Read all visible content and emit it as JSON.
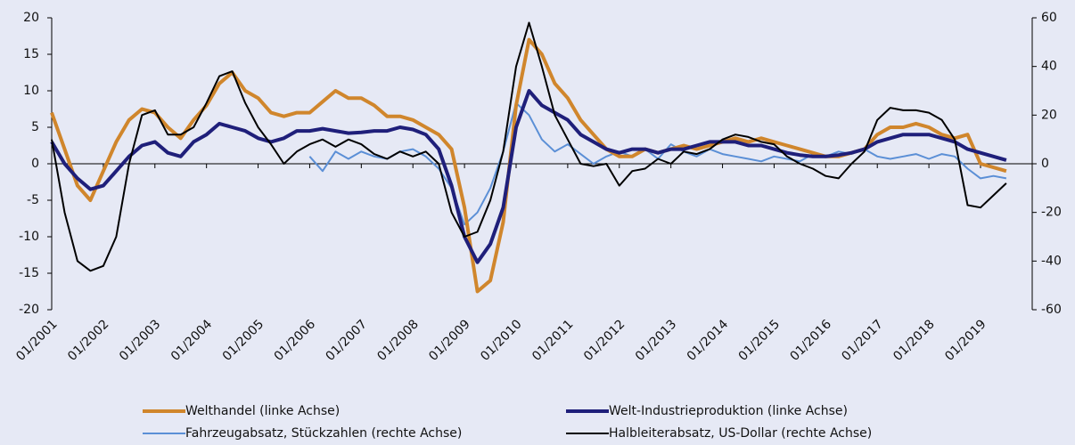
{
  "chart_data": {
    "type": "line",
    "categories": [
      "01/2001",
      null,
      null,
      null,
      "01/2002",
      null,
      null,
      null,
      "01/2003",
      null,
      null,
      null,
      "01/2004",
      null,
      null,
      null,
      "01/2005",
      null,
      null,
      null,
      "01/2006",
      null,
      null,
      null,
      "01/2007",
      null,
      null,
      null,
      "01/2008",
      null,
      null,
      null,
      "01/2009",
      null,
      null,
      null,
      "01/2010",
      null,
      null,
      null,
      "01/2011",
      null,
      null,
      null,
      "01/2012",
      null,
      null,
      null,
      "01/2013",
      null,
      null,
      null,
      "01/2014",
      null,
      null,
      null,
      "01/2015",
      null,
      null,
      null,
      "01/2016",
      null,
      null,
      null,
      "01/2017",
      null,
      null,
      null,
      "01/2018",
      null,
      null,
      null,
      "01/2019",
      null,
      null
    ],
    "series": [
      {
        "name": "Welthandel (linke Achse)",
        "color": "#d0862c",
        "axis": "y",
        "values": [
          7,
          2,
          -3,
          -5,
          -1,
          3,
          6,
          7.5,
          7,
          5,
          3.5,
          6,
          8,
          11,
          12.5,
          10,
          9,
          7,
          6.5,
          7,
          7,
          8.5,
          10,
          9,
          9,
          8,
          6.5,
          6.5,
          6,
          5,
          4,
          2,
          -6,
          -17.5,
          -16,
          -8,
          8,
          17,
          15,
          11,
          9,
          6,
          4,
          2,
          1,
          1,
          2,
          1.5,
          2,
          2.5,
          2,
          2.5,
          3,
          3.5,
          3,
          3.5,
          3,
          2.5,
          2,
          1.5,
          1,
          1,
          1.5,
          2,
          4,
          5,
          5,
          5.5,
          5,
          4,
          3.5,
          4,
          0,
          -0.5,
          -1
        ]
      },
      {
        "name": "Welt-Industrieproduktion (linke Achse)",
        "color": "#1f1f7a",
        "axis": "y",
        "values": [
          3,
          0,
          -2,
          -3.5,
          -3,
          -1,
          1,
          2.5,
          3,
          1.5,
          1,
          3,
          4,
          5.5,
          5,
          4.5,
          3.5,
          3,
          3.5,
          4.5,
          4.5,
          4.8,
          4.5,
          4.2,
          4.3,
          4.5,
          4.5,
          5,
          4.7,
          4,
          2,
          -3,
          -10,
          -13.5,
          -11,
          -6,
          5,
          10,
          8,
          7,
          6,
          4,
          3,
          2,
          1.5,
          2,
          2,
          1.5,
          2,
          2,
          2.5,
          3,
          3,
          3,
          2.5,
          2.5,
          2,
          1.5,
          1.2,
          1,
          1,
          1.2,
          1.5,
          2,
          3,
          3.5,
          4,
          4,
          4,
          3.5,
          3,
          2,
          1.5,
          1,
          0.5
        ]
      },
      {
        "name": "Fahrzeugabsatz, Stückzahlen (rechte Achse)",
        "color": "#5b8fd6",
        "axis": "y2",
        "values": [
          null,
          null,
          null,
          null,
          null,
          null,
          null,
          null,
          null,
          null,
          null,
          null,
          null,
          null,
          null,
          null,
          null,
          null,
          null,
          null,
          3,
          -3,
          5,
          2,
          5,
          3,
          2,
          5,
          6,
          3,
          -2,
          -10,
          -25,
          -20,
          -10,
          5,
          25,
          20,
          10,
          5,
          8,
          4,
          0,
          3,
          5,
          3,
          6,
          2,
          8,
          5,
          3,
          6,
          4,
          3,
          2,
          1,
          3,
          2,
          1,
          4,
          3,
          5,
          4,
          6,
          3,
          2,
          3,
          4,
          2,
          4,
          3,
          -2,
          -6,
          -5,
          -6
        ]
      },
      {
        "name": "Halbleiterabsatz, US-Dollar (rechte Achse)",
        "color": "#000000",
        "axis": "y2",
        "values": [
          10,
          -20,
          -40,
          -44,
          -42,
          -30,
          0,
          20,
          22,
          12,
          12,
          15,
          25,
          36,
          38,
          25,
          15,
          8,
          0,
          5,
          8,
          10,
          7,
          10,
          8,
          4,
          2,
          5,
          3,
          5,
          0,
          -20,
          -30,
          -28,
          -15,
          5,
          40,
          58,
          40,
          20,
          10,
          0,
          -1,
          0,
          -9,
          -3,
          -2,
          2,
          0,
          5,
          4,
          6,
          10,
          12,
          11,
          9,
          8,
          3,
          0,
          -2,
          -5,
          -6,
          0,
          5,
          18,
          23,
          22,
          22,
          21,
          18,
          10,
          -17,
          -18,
          -13,
          -8
        ]
      }
    ],
    "ylim": [
      -20,
      20
    ],
    "yticks": [
      -20,
      -15,
      -10,
      -5,
      0,
      5,
      10,
      15,
      20
    ],
    "y2lim": [
      -60,
      60
    ],
    "y2ticks": [
      -60,
      -40,
      -20,
      0,
      20,
      40,
      60
    ],
    "legend": "bottom"
  }
}
